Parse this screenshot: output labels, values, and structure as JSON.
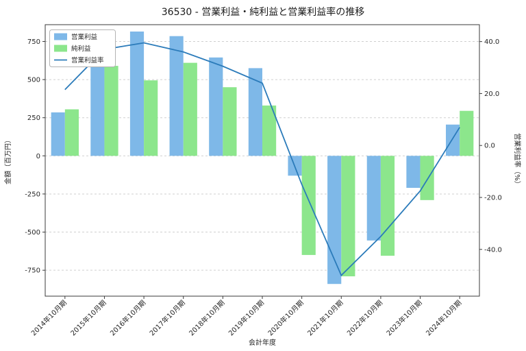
{
  "chart_data": {
    "type": "bar+line",
    "title": "36530 - 営業利益・純利益と営業利益率の推移",
    "categories": [
      "2014年10月期",
      "2015年10月期",
      "2016年10月期",
      "2017年10月期",
      "2018年10月期",
      "2019年10月期",
      "2020年10月期",
      "2021年10月期",
      "2022年10月期",
      "2023年10月期",
      "2024年10月期"
    ],
    "series": [
      {
        "name": "営業利益",
        "type": "bar",
        "axis": "left",
        "color": "#7eb8e8",
        "values": [
          285,
          720,
          815,
          785,
          645,
          575,
          -130,
          -840,
          -555,
          -210,
          205
        ]
      },
      {
        "name": "純利益",
        "type": "bar",
        "axis": "left",
        "color": "#8ce68c",
        "values": [
          305,
          590,
          495,
          610,
          450,
          330,
          -650,
          -790,
          -655,
          -290,
          295
        ]
      },
      {
        "name": "営業利益率",
        "type": "line",
        "axis": "right",
        "color": "#2b7bba",
        "values": [
          21.5,
          37.0,
          39.5,
          36.0,
          30.5,
          24.0,
          -15.0,
          -50.0,
          -35.0,
          -17.5,
          7.0
        ]
      }
    ],
    "xlabel": "会計年度",
    "ylabel_left": "金額（百万円）",
    "ylabel_right": "営業利益率（%）",
    "ylim_left": [
      -920,
      860
    ],
    "ylim_right": [
      -58,
      46.5
    ],
    "yticks_left": [
      -750,
      -500,
      -250,
      0,
      250,
      500,
      750
    ],
    "yticks_right": [
      -40,
      -20,
      0,
      20,
      40
    ],
    "grid": "horizontal-dashed",
    "legend_position": "upper-left"
  }
}
